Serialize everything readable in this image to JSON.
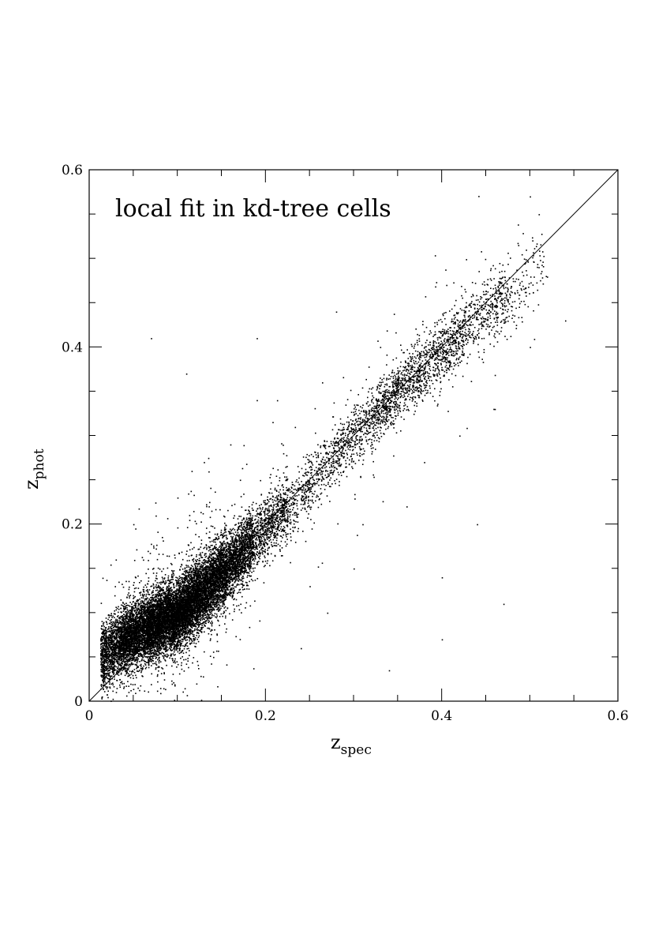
{
  "chart_data": {
    "type": "scatter",
    "title": "",
    "annotation": "local fit in kd-tree cells",
    "xlabel": {
      "main": "z",
      "subscript": "spec"
    },
    "ylabel": {
      "main": "z",
      "subscript": "phot"
    },
    "xlim": [
      0,
      0.6
    ],
    "ylim": [
      0,
      0.6
    ],
    "x_major_ticks": [
      0,
      0.2,
      0.4,
      0.6
    ],
    "y_major_ticks": [
      0,
      0.2,
      0.4,
      0.6
    ],
    "x_tick_labels": [
      "0",
      "0.2",
      "0.4",
      "0.6"
    ],
    "y_tick_labels": [
      "0",
      "0.2",
      "0.4",
      "0.6"
    ],
    "minor_tick_step": 0.05,
    "grid": false,
    "legend": "none",
    "reference_line": {
      "from": [
        0,
        0
      ],
      "to": [
        0.6,
        0.6
      ],
      "label": ""
    },
    "point_color": "#000000",
    "series": [
      {
        "name": "",
        "density_profile": [
          {
            "z_spec": 0.02,
            "z_phot_mean": 0.055,
            "z_phot_scatter": 0.018,
            "n": 1100
          },
          {
            "z_spec": 0.05,
            "z_phot_mean": 0.075,
            "z_phot_scatter": 0.018,
            "n": 2300
          },
          {
            "z_spec": 0.08,
            "z_phot_mean": 0.09,
            "z_phot_scatter": 0.018,
            "n": 3000
          },
          {
            "z_spec": 0.11,
            "z_phot_mean": 0.107,
            "z_phot_scatter": 0.019,
            "n": 3000
          },
          {
            "z_spec": 0.14,
            "z_phot_mean": 0.135,
            "z_phot_scatter": 0.019,
            "n": 2300
          },
          {
            "z_spec": 0.17,
            "z_phot_mean": 0.165,
            "z_phot_scatter": 0.018,
            "n": 1500
          },
          {
            "z_spec": 0.2,
            "z_phot_mean": 0.195,
            "z_phot_scatter": 0.017,
            "n": 800
          },
          {
            "z_spec": 0.25,
            "z_phot_mean": 0.245,
            "z_phot_scatter": 0.016,
            "n": 400
          },
          {
            "z_spec": 0.3,
            "z_phot_mean": 0.3,
            "z_phot_scatter": 0.016,
            "n": 500
          },
          {
            "z_spec": 0.35,
            "z_phot_mean": 0.35,
            "z_phot_scatter": 0.016,
            "n": 700
          },
          {
            "z_spec": 0.4,
            "z_phot_mean": 0.395,
            "z_phot_scatter": 0.017,
            "n": 600
          },
          {
            "z_spec": 0.45,
            "z_phot_mean": 0.44,
            "z_phot_scatter": 0.018,
            "n": 400
          },
          {
            "z_spec": 0.5,
            "z_phot_mean": 0.48,
            "z_phot_scatter": 0.02,
            "n": 120
          }
        ],
        "outliers": [
          [
            0.07,
            0.41
          ],
          [
            0.11,
            0.37
          ],
          [
            0.47,
            0.11
          ],
          [
            0.4,
            0.07
          ],
          [
            0.34,
            0.035
          ],
          [
            0.4,
            0.14
          ],
          [
            0.44,
            0.2
          ],
          [
            0.28,
            0.44
          ],
          [
            0.33,
            0.4
          ],
          [
            0.19,
            0.41
          ],
          [
            0.16,
            0.29
          ],
          [
            0.19,
            0.34
          ],
          [
            0.22,
            0.28
          ],
          [
            0.5,
            0.4
          ],
          [
            0.54,
            0.43
          ],
          [
            0.51,
            0.55
          ],
          [
            0.5,
            0.57
          ],
          [
            0.03,
            0.16
          ],
          [
            0.05,
            0.2
          ],
          [
            0.1,
            0.23
          ],
          [
            0.13,
            0.27
          ],
          [
            0.25,
            0.13
          ],
          [
            0.27,
            0.1
          ],
          [
            0.24,
            0.06
          ],
          [
            0.3,
            0.15
          ],
          [
            0.36,
            0.22
          ],
          [
            0.42,
            0.3
          ],
          [
            0.46,
            0.33
          ],
          [
            0.38,
            0.27
          ],
          [
            0.31,
            0.2
          ]
        ]
      }
    ]
  }
}
